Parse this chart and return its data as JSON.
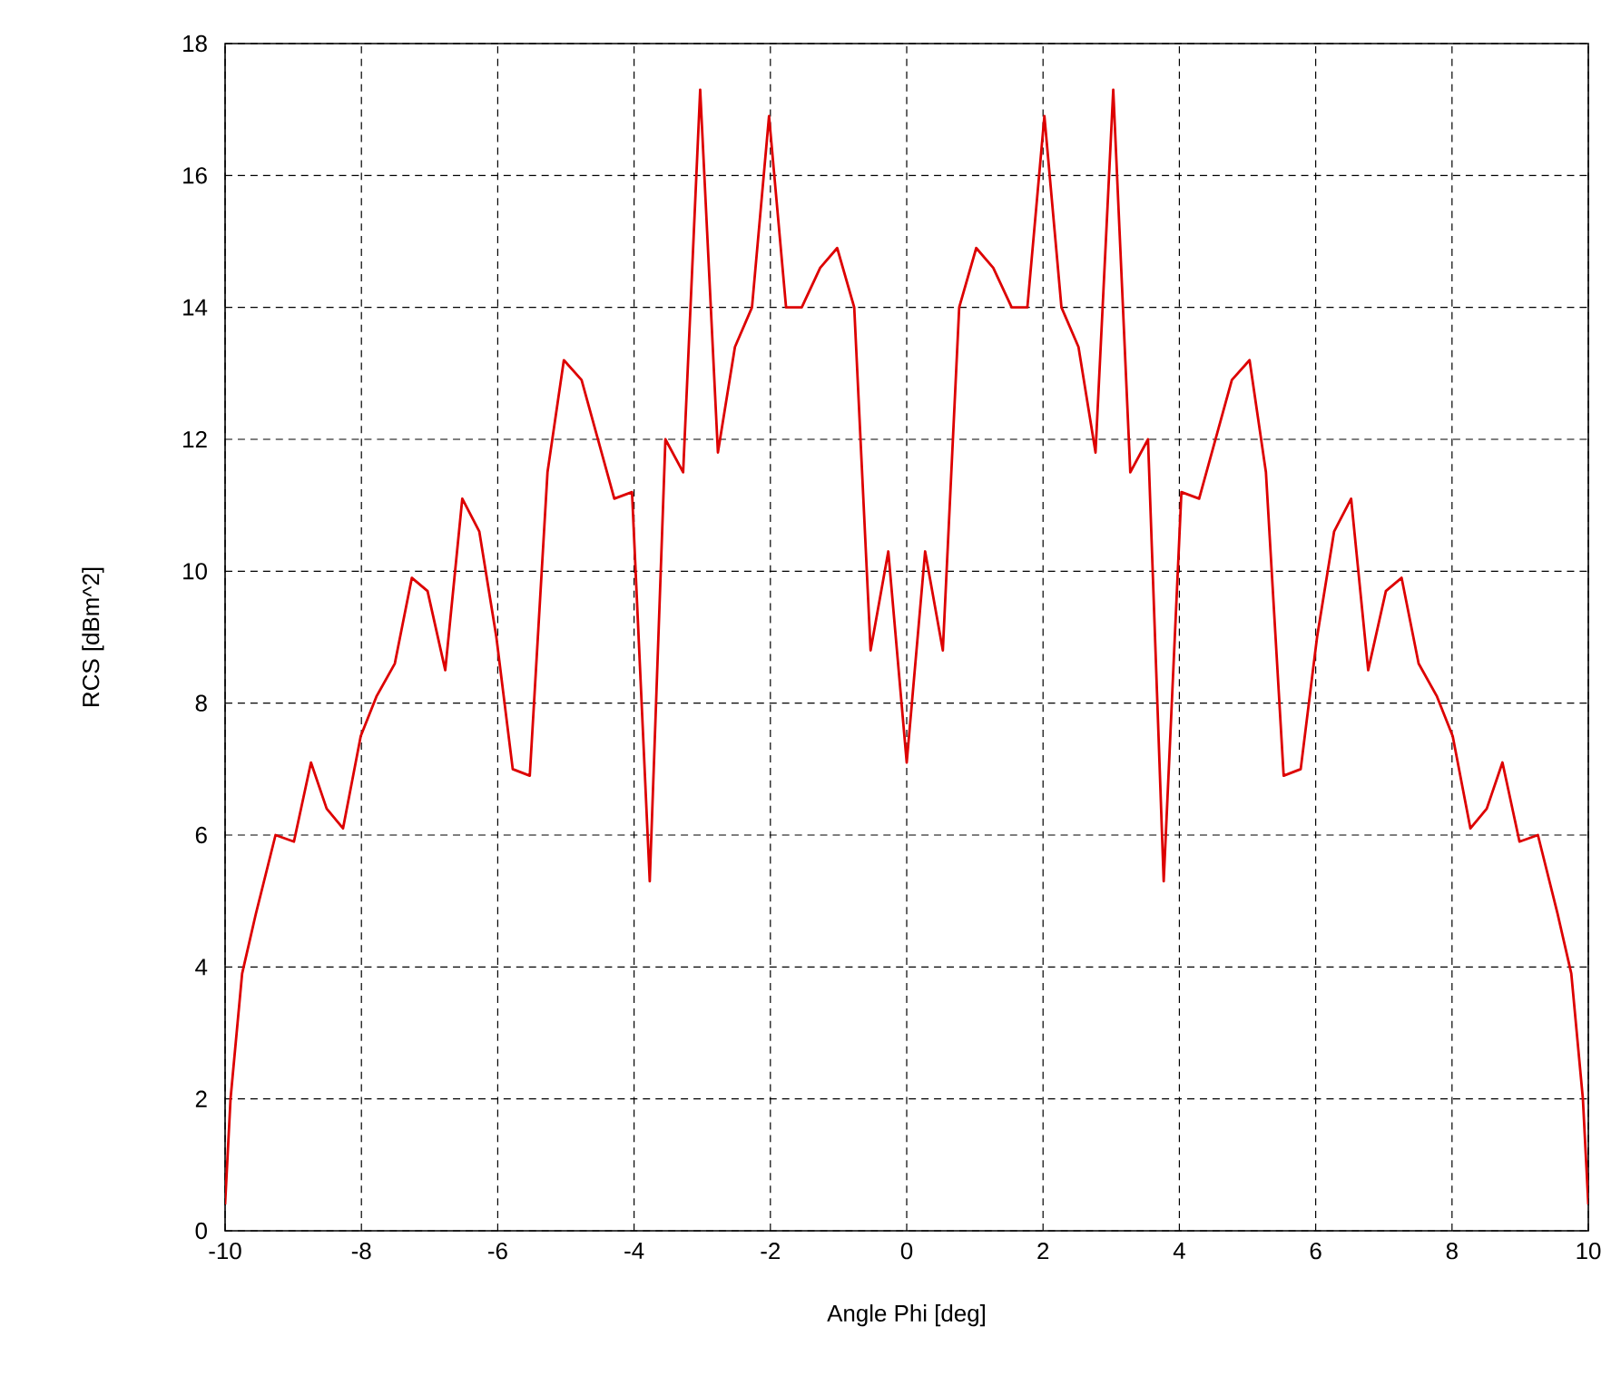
{
  "chart_data": {
    "type": "line",
    "xlabel": "Angle Phi [deg]",
    "ylabel": "RCS [dBm^2]",
    "xlim": [
      -10,
      10
    ],
    "ylim": [
      0,
      18
    ],
    "xticks": [
      -10,
      -8,
      -6,
      -4,
      -2,
      0,
      2,
      4,
      6,
      8,
      10
    ],
    "yticks": [
      0,
      2,
      4,
      6,
      8,
      10,
      12,
      14,
      16,
      18
    ],
    "grid": true,
    "marker": "none",
    "line_style": "solid",
    "series": [
      {
        "color": "#dd0000",
        "x": [
          -10,
          -9.92,
          -9.75,
          -9.55,
          -9.26,
          -8.99,
          -8.74,
          -8.51,
          -8.27,
          -8.01,
          -7.78,
          -7.51,
          -7.26,
          -7.03,
          -6.77,
          -6.52,
          -6.27,
          -6.02,
          -5.78,
          -5.53,
          -5.27,
          -5.03,
          -4.77,
          -4.29,
          -4.03,
          -3.77,
          -3.54,
          -3.28,
          -3.03,
          -2.77,
          -2.52,
          -2.27,
          -2.02,
          -1.77,
          -1.54,
          -1.27,
          -1.02,
          -0.77,
          -0.53,
          -0.27,
          0,
          0.27,
          0.53,
          0.77,
          1.02,
          1.27,
          1.54,
          1.77,
          2.02,
          2.27,
          2.52,
          2.77,
          3.03,
          3.28,
          3.54,
          3.77,
          4.03,
          4.29,
          4.77,
          5.03,
          5.27,
          5.53,
          5.78,
          6.02,
          6.27,
          6.52,
          6.77,
          7.03,
          7.26,
          7.51,
          7.78,
          8.01,
          8.27,
          8.51,
          8.74,
          8.99,
          9.26,
          9.55,
          9.75,
          9.92,
          10
        ],
        "values": [
          0.4,
          2.0,
          3.9,
          4.8,
          6.0,
          5.9,
          7.1,
          6.4,
          6.1,
          7.5,
          8.1,
          8.6,
          9.9,
          9.7,
          8.5,
          11.1,
          10.6,
          9.0,
          7.0,
          6.9,
          11.5,
          13.2,
          12.9,
          11.1,
          11.2,
          5.3,
          12.0,
          11.5,
          17.3,
          11.8,
          13.4,
          14.0,
          16.9,
          14.0,
          14.0,
          14.6,
          14.9,
          14.0,
          8.8,
          10.3,
          7.1,
          10.3,
          8.8,
          14.0,
          14.9,
          14.6,
          14.0,
          14.0,
          16.9,
          14.0,
          13.4,
          11.8,
          17.3,
          11.5,
          12.0,
          5.3,
          11.2,
          11.1,
          12.9,
          13.2,
          11.5,
          6.9,
          7.0,
          9.0,
          10.6,
          11.1,
          8.5,
          9.7,
          9.9,
          8.6,
          8.1,
          7.5,
          6.1,
          6.4,
          7.1,
          5.9,
          6.0,
          4.8,
          3.9,
          2.0,
          0.4
        ]
      }
    ]
  }
}
